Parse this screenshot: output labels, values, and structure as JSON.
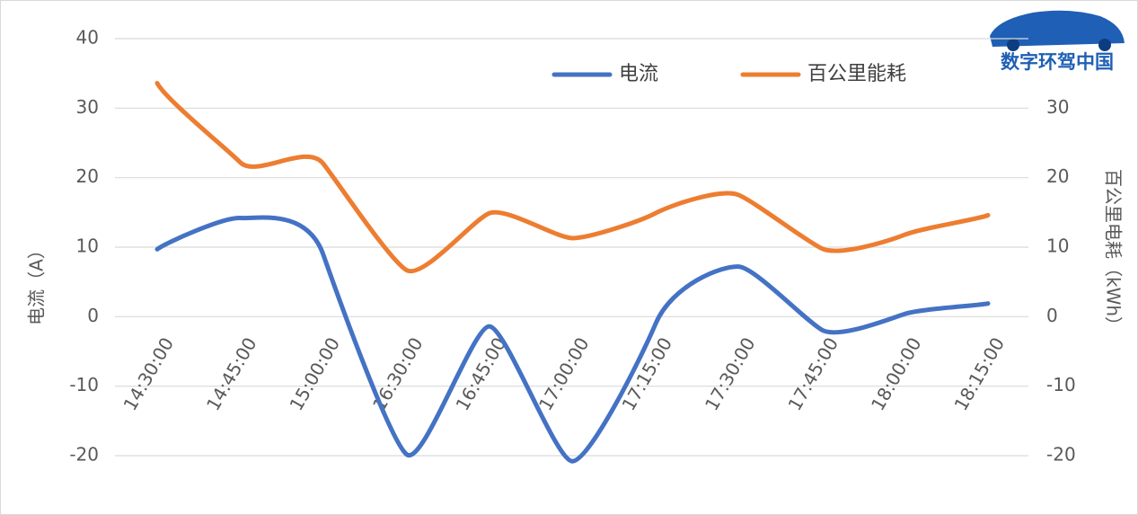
{
  "chart_data": {
    "type": "line",
    "y_label": "电流（A）",
    "y2_label": "百公里电耗（kWh）",
    "categories": [
      "14:30:00",
      "14:45:00",
      "15:00:00",
      "16:30:00",
      "16:45:00",
      "17:00:00",
      "17:15:00",
      "17:30:00",
      "17:45:00",
      "18:00:00",
      "18:15:00"
    ],
    "series": [
      {
        "name": "电流",
        "color": "#4472c4",
        "values": [
          9.7,
          14.2,
          8.9,
          -19.8,
          -1.4,
          -20.8,
          -1.0,
          7.2,
          -1.9,
          0.4,
          1.9
        ]
      },
      {
        "name": "百公里能耗",
        "color": "#ed7d31",
        "axis": "y2",
        "values": [
          33.6,
          22.2,
          22.0,
          6.7,
          14.9,
          11.3,
          14.9,
          17.5,
          9.8,
          11.8,
          14.6
        ]
      }
    ],
    "ylim": [
      -20,
      40
    ],
    "yticks": [
      -20,
      -10,
      0,
      10,
      20,
      30,
      40
    ],
    "y2lim": [
      -20,
      40
    ],
    "y2ticks": [
      -20,
      -10,
      0,
      10,
      20,
      30
    ],
    "grid": true,
    "legend": "top"
  },
  "logo": {
    "text": "数字环驾中国"
  }
}
